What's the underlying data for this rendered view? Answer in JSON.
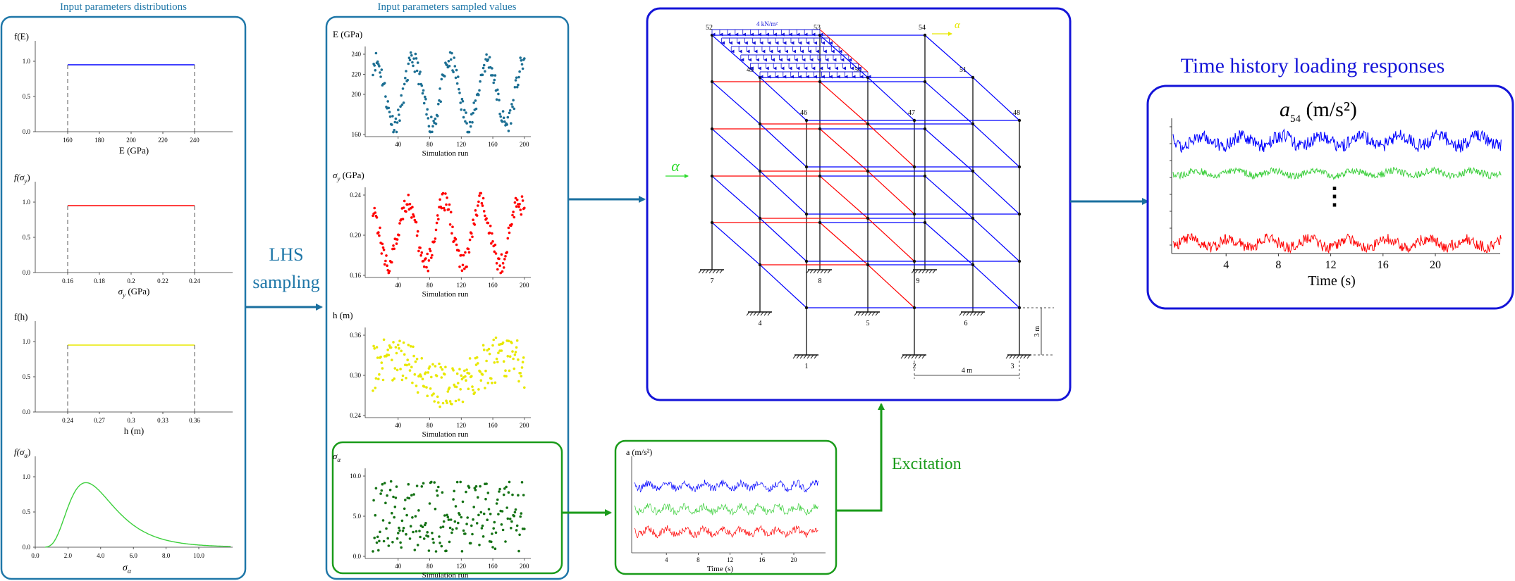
{
  "colors": {
    "panel_teal": "#1f77a8",
    "panel_blue": "#1414d8",
    "panel_green": "#1a9b1a",
    "blue": "#0000ff",
    "red": "#ff0000",
    "yellow": "#e8e800",
    "green": "#3ccf3c",
    "teal_points": "#1c6f93",
    "dark_green_points": "#157215",
    "arrow_teal": "#1a6f9f",
    "arrow_green": "#1a9b1a",
    "excite_green": "#2ddc2d"
  },
  "panel1": {
    "title": "Input parameters distributions",
    "charts": [
      {
        "ylabel": "f(E)",
        "xlabel": "E (GPa)",
        "yticks": [
          "0.0",
          "0.5",
          "1.0"
        ],
        "xticks": [
          "160",
          "180",
          "200",
          "220",
          "240"
        ],
        "color": "blue"
      },
      {
        "ylabel": "f(σy)",
        "xlabel": "σy (GPa)",
        "yticks": [
          "0.0",
          "0.5",
          "1.0"
        ],
        "xticks": [
          "0.16",
          "0.18",
          "0.2",
          "0.22",
          "0.24"
        ],
        "color": "red"
      },
      {
        "ylabel": "f(h)",
        "xlabel": "h (m)",
        "yticks": [
          "0.0",
          "0.5",
          "1.0"
        ],
        "xticks": [
          "0.24",
          "0.27",
          "0.3",
          "0.33",
          "0.36"
        ],
        "color": "yellow"
      },
      {
        "ylabel": "f(σα)",
        "xlabel": "σα",
        "yticks": [
          "0.0",
          "0.5",
          "1.0"
        ],
        "xticks": [
          "0.0",
          "2.0",
          "4.0",
          "6.0",
          "8.0",
          "10.0"
        ],
        "color": "green"
      }
    ]
  },
  "lhs_label": [
    "LHS",
    "sampling"
  ],
  "panel2": {
    "title": "Input parameters sampled values",
    "charts": [
      {
        "ylabel": "E (GPa)",
        "xlabel": "Simulation run",
        "yticks": [
          "160",
          "200",
          "220",
          "240"
        ],
        "xticks": [
          "40",
          "80",
          "120",
          "160",
          "200"
        ],
        "color": "teal_points"
      },
      {
        "ylabel": "σy (GPa)",
        "xlabel": "Simulation run",
        "yticks": [
          "0.16",
          "0.20",
          "0.24"
        ],
        "xticks": [
          "40",
          "80",
          "120",
          "160",
          "200"
        ],
        "color": "red"
      },
      {
        "ylabel": "h (m)",
        "xlabel": "Simulation run",
        "yticks": [
          "0.24",
          "0.30",
          "0.36"
        ],
        "xticks": [
          "40",
          "80",
          "120",
          "160",
          "200"
        ],
        "color": "yellow"
      },
      {
        "ylabel": "σα",
        "xlabel": "Simulation run",
        "yticks": [
          "0.0",
          "5.0",
          "10.0"
        ],
        "xticks": [
          "40",
          "80",
          "120",
          "160",
          "200"
        ],
        "color": "dark_green_points"
      }
    ]
  },
  "frame": {
    "load_label": "4 kN/m²",
    "alpha_label": "α",
    "alpha_top_label": "α",
    "nodes_top": [
      "52",
      "53",
      "54",
      "49",
      "50",
      "51",
      "46",
      "47",
      "48"
    ],
    "nodes_bottom": [
      "7",
      "8",
      "9",
      "4",
      "5",
      "6",
      "1",
      "2",
      "3"
    ],
    "dim_height": "3 m",
    "dim_width": "4 m"
  },
  "excitation": {
    "ylabel": "a (m/s²)",
    "xlabel": "Time (s)",
    "xticks": [
      "4",
      "8",
      "12",
      "16",
      "20"
    ],
    "label": "Excitation"
  },
  "response": {
    "title": "Time history loading responses",
    "ylabel_main": "a",
    "ylabel_sub": "54",
    "ylabel_unit": "(m/s²)",
    "xlabel": "Time (s)",
    "xticks": [
      "4",
      "8",
      "12",
      "16",
      "20"
    ],
    "dots": "⋮"
  }
}
